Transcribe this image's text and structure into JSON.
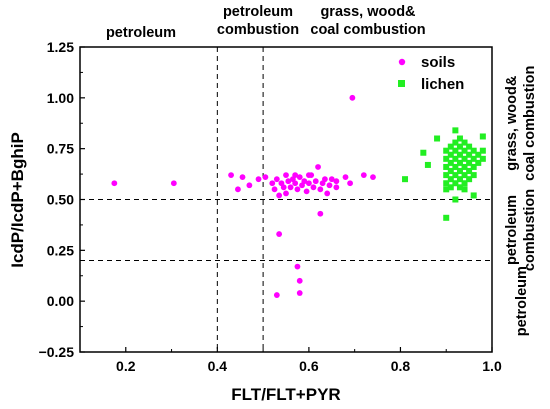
{
  "chart_data": {
    "type": "scatter",
    "xlabel": "FLT/FLT+PYR",
    "ylabel": "IcdP/IcdP+BghiP",
    "xlim": [
      0.1,
      1.0
    ],
    "ylim": [
      -0.25,
      1.25
    ],
    "x_ticks": [
      "0.2",
      "0.4",
      "0.6",
      "0.8",
      "1.0"
    ],
    "y_ticks": [
      "−0.25",
      "0.00",
      "0.25",
      "0.50",
      "0.75",
      "1.00",
      "1.25"
    ],
    "reference_lines": {
      "vertical": [
        0.4,
        0.5
      ],
      "horizontal": [
        0.2,
        0.5
      ]
    },
    "region_labels_top": [
      {
        "id": "top-left",
        "lines": [
          "petroleum"
        ]
      },
      {
        "id": "top-mid",
        "lines": [
          "petroleum",
          "combustion"
        ]
      },
      {
        "id": "top-right",
        "lines": [
          "grass, wood&",
          "coal combustion"
        ]
      }
    ],
    "region_labels_right": [
      {
        "id": "right-top",
        "lines": [
          "grass, wood&",
          "coal combustion"
        ]
      },
      {
        "id": "right-mid",
        "lines": [
          "petroleum",
          "combustion"
        ]
      },
      {
        "id": "right-bot",
        "lines": [
          "petroleum"
        ]
      }
    ],
    "legend_position": "top-right",
    "series": [
      {
        "name": "soils",
        "marker": "circle",
        "color": "#ff00ff",
        "points": [
          [
            0.175,
            0.58
          ],
          [
            0.305,
            0.58
          ],
          [
            0.43,
            0.62
          ],
          [
            0.445,
            0.55
          ],
          [
            0.455,
            0.61
          ],
          [
            0.47,
            0.57
          ],
          [
            0.49,
            0.6
          ],
          [
            0.505,
            0.61
          ],
          [
            0.52,
            0.58
          ],
          [
            0.525,
            0.55
          ],
          [
            0.53,
            0.6
          ],
          [
            0.535,
            0.52
          ],
          [
            0.54,
            0.58
          ],
          [
            0.545,
            0.56
          ],
          [
            0.55,
            0.53
          ],
          [
            0.555,
            0.59
          ],
          [
            0.56,
            0.56
          ],
          [
            0.565,
            0.6
          ],
          [
            0.57,
            0.58
          ],
          [
            0.575,
            0.55
          ],
          [
            0.58,
            0.61
          ],
          [
            0.585,
            0.57
          ],
          [
            0.59,
            0.59
          ],
          [
            0.595,
            0.54
          ],
          [
            0.6,
            0.58
          ],
          [
            0.605,
            0.62
          ],
          [
            0.61,
            0.56
          ],
          [
            0.615,
            0.59
          ],
          [
            0.62,
            0.66
          ],
          [
            0.625,
            0.55
          ],
          [
            0.63,
            0.58
          ],
          [
            0.635,
            0.6
          ],
          [
            0.64,
            0.53
          ],
          [
            0.645,
            0.57
          ],
          [
            0.65,
            0.6
          ],
          [
            0.66,
            0.59
          ],
          [
            0.68,
            0.61
          ],
          [
            0.69,
            0.58
          ],
          [
            0.72,
            0.62
          ],
          [
            0.74,
            0.61
          ],
          [
            0.695,
            1.0
          ],
          [
            0.625,
            0.43
          ],
          [
            0.535,
            0.33
          ],
          [
            0.575,
            0.17
          ],
          [
            0.58,
            0.1
          ],
          [
            0.58,
            0.04
          ],
          [
            0.53,
            0.03
          ],
          [
            0.6,
            0.62
          ],
          [
            0.57,
            0.62
          ],
          [
            0.55,
            0.62
          ],
          [
            0.66,
            0.56
          ]
        ]
      },
      {
        "name": "lichen",
        "marker": "square",
        "color": "#22ee22",
        "points": [
          [
            0.9,
            0.41
          ],
          [
            0.81,
            0.6
          ],
          [
            0.85,
            0.73
          ],
          [
            0.86,
            0.67
          ],
          [
            0.88,
            0.8
          ],
          [
            0.9,
            0.55
          ],
          [
            0.9,
            0.58
          ],
          [
            0.9,
            0.62
          ],
          [
            0.9,
            0.66
          ],
          [
            0.9,
            0.7
          ],
          [
            0.9,
            0.74
          ],
          [
            0.91,
            0.56
          ],
          [
            0.91,
            0.6
          ],
          [
            0.91,
            0.64
          ],
          [
            0.91,
            0.68
          ],
          [
            0.91,
            0.72
          ],
          [
            0.91,
            0.76
          ],
          [
            0.92,
            0.84
          ],
          [
            0.92,
            0.58
          ],
          [
            0.92,
            0.62
          ],
          [
            0.92,
            0.66
          ],
          [
            0.92,
            0.7
          ],
          [
            0.92,
            0.74
          ],
          [
            0.92,
            0.78
          ],
          [
            0.93,
            0.56
          ],
          [
            0.93,
            0.6
          ],
          [
            0.93,
            0.64
          ],
          [
            0.93,
            0.68
          ],
          [
            0.93,
            0.72
          ],
          [
            0.93,
            0.76
          ],
          [
            0.93,
            0.8
          ],
          [
            0.94,
            0.58
          ],
          [
            0.94,
            0.62
          ],
          [
            0.94,
            0.66
          ],
          [
            0.94,
            0.7
          ],
          [
            0.94,
            0.74
          ],
          [
            0.94,
            0.78
          ],
          [
            0.95,
            0.6
          ],
          [
            0.95,
            0.64
          ],
          [
            0.95,
            0.68
          ],
          [
            0.95,
            0.72
          ],
          [
            0.95,
            0.76
          ],
          [
            0.96,
            0.52
          ],
          [
            0.96,
            0.62
          ],
          [
            0.96,
            0.66
          ],
          [
            0.96,
            0.7
          ],
          [
            0.96,
            0.74
          ],
          [
            0.97,
            0.68
          ],
          [
            0.97,
            0.72
          ],
          [
            0.98,
            0.81
          ],
          [
            0.98,
            0.7
          ],
          [
            0.98,
            0.74
          ],
          [
            0.92,
            0.5
          ],
          [
            0.94,
            0.55
          ]
        ]
      }
    ]
  }
}
